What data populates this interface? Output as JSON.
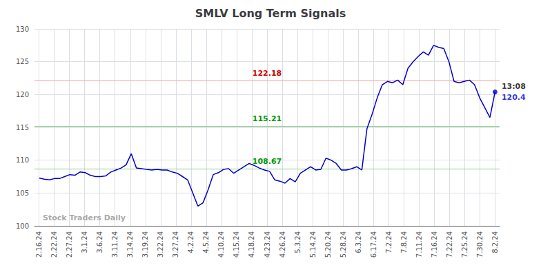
{
  "chart_data": {
    "type": "line",
    "title": "SMLV Long Term Signals",
    "x": [
      0,
      0.3371,
      0.6742,
      1.0112,
      1.3483,
      1.6854,
      2.0225,
      2.3596,
      2.6966,
      3.0337,
      3.3708,
      3.7079,
      4.0449,
      4.382,
      4.7191,
      5.0562,
      5.3933,
      5.7303,
      6.0674,
      6.4045,
      6.7416,
      7.0787,
      7.4157,
      7.7528,
      8.0899,
      8.427,
      8.764,
      9.1011,
      9.4382,
      9.7753,
      10.1124,
      10.4494,
      10.7865,
      11.1236,
      11.4607,
      11.7978,
      12.1348,
      12.4719,
      12.809,
      13.1461,
      13.4831,
      13.8202,
      14.1573,
      14.4944,
      14.8315,
      15.1685,
      15.5056,
      15.8427,
      16.1798,
      16.5169,
      16.8539,
      17.191,
      17.5281,
      17.8652,
      18.2022,
      18.5393,
      18.8764,
      19.2135,
      19.5506,
      19.8876,
      20.2247,
      20.5618,
      20.8989,
      21.236,
      21.573,
      21.9101,
      22.2472,
      22.5843,
      22.9213,
      23.2584,
      23.5955,
      23.9326,
      24.2697,
      24.6067,
      24.9438,
      25.2809,
      25.618,
      25.9551,
      26.2921,
      26.6292,
      26.9663,
      27.3034,
      27.6404,
      27.9775,
      28.3146,
      28.6517,
      28.9888,
      29.3258,
      29.6629,
      30
    ],
    "values": [
      107.3,
      107.1,
      107.0,
      107.2,
      107.2,
      107.5,
      107.8,
      107.7,
      108.2,
      108.1,
      107.7,
      107.5,
      107.5,
      107.6,
      108.2,
      108.5,
      108.8,
      109.3,
      111.0,
      108.8,
      108.7,
      108.6,
      108.5,
      108.6,
      108.5,
      108.5,
      108.2,
      108.0,
      107.5,
      107.0,
      105.0,
      103.0,
      103.5,
      105.5,
      107.8,
      108.1,
      108.6,
      108.7,
      108.0,
      108.5,
      109.0,
      109.5,
      109.2,
      108.8,
      108.5,
      108.3,
      107.0,
      106.8,
      106.5,
      107.2,
      106.7,
      108.0,
      108.5,
      109.0,
      108.5,
      108.6,
      110.3,
      110.0,
      109.5,
      108.5,
      108.5,
      108.7,
      109.0,
      108.5,
      114.8,
      117.0,
      119.5,
      121.5,
      122.0,
      121.8,
      122.2,
      121.5,
      124.0,
      125.0,
      125.8,
      126.5,
      126.0,
      127.5,
      127.2,
      127.0,
      125.0,
      122.0,
      121.8,
      122.0,
      122.2,
      121.5,
      119.5,
      118.0,
      116.5,
      120.4
    ],
    "color": "#0000cc",
    "last_point": {
      "color": "#0000cc",
      "labels": [
        {
          "text": "13:08",
          "color": "#000000"
        },
        {
          "text": "120.4",
          "color": "#0000cc"
        }
      ]
    },
    "hlines": [
      {
        "value": 122.18,
        "color": "#ffaaaa",
        "label": "122.18",
        "label_color": "#cc0000"
      },
      {
        "value": 115.21,
        "color": "#88cc88",
        "label": "115.21",
        "label_color": "#009900"
      },
      {
        "value": 108.67,
        "color": "#88cc88",
        "label": "108.67",
        "label_color": "#009900"
      }
    ],
    "watermark": {
      "text": "Stock Traders Daily",
      "color": "#aaaaaa"
    },
    "xlim": [
      -0.3,
      30.3
    ],
    "xticks": [
      {
        "value": 0,
        "label": "2.16.24"
      },
      {
        "value": 1,
        "label": "2.22.24"
      },
      {
        "value": 2,
        "label": "2.27.24"
      },
      {
        "value": 3,
        "label": "3.1.24"
      },
      {
        "value": 4,
        "label": "3.6.24"
      },
      {
        "value": 5,
        "label": "3.11.24"
      },
      {
        "value": 6,
        "label": "3.14.24"
      },
      {
        "value": 7,
        "label": "3.19.24"
      },
      {
        "value": 8,
        "label": "3.22.24"
      },
      {
        "value": 9,
        "label": "3.27.24"
      },
      {
        "value": 10,
        "label": "4.2.24"
      },
      {
        "value": 11,
        "label": "4.5.24"
      },
      {
        "value": 12,
        "label": "4.10.24"
      },
      {
        "value": 13,
        "label": "4.15.24"
      },
      {
        "value": 14,
        "label": "4.18.24"
      },
      {
        "value": 15,
        "label": "4.23.24"
      },
      {
        "value": 16,
        "label": "4.26.24"
      },
      {
        "value": 17,
        "label": "5.3.24"
      },
      {
        "value": 18,
        "label": "5.14.24"
      },
      {
        "value": 19,
        "label": "5.20.24"
      },
      {
        "value": 20,
        "label": "5.28.24"
      },
      {
        "value": 21,
        "label": "6.3.24"
      },
      {
        "value": 22,
        "label": "6.17.24"
      },
      {
        "value": 23,
        "label": "7.2.24"
      },
      {
        "value": 24,
        "label": "7.8.24"
      },
      {
        "value": 25,
        "label": "7.11.24"
      },
      {
        "value": 26,
        "label": "7.16.24"
      },
      {
        "value": 27,
        "label": "7.22.24"
      },
      {
        "value": 28,
        "label": "7.25.24"
      },
      {
        "value": 29,
        "label": "7.30.24"
      },
      {
        "value": 30,
        "label": "8.2.24"
      }
    ],
    "ylim": [
      100,
      130
    ],
    "yticks": [
      100,
      105,
      110,
      115,
      120,
      125,
      130
    ],
    "grid": true
  }
}
